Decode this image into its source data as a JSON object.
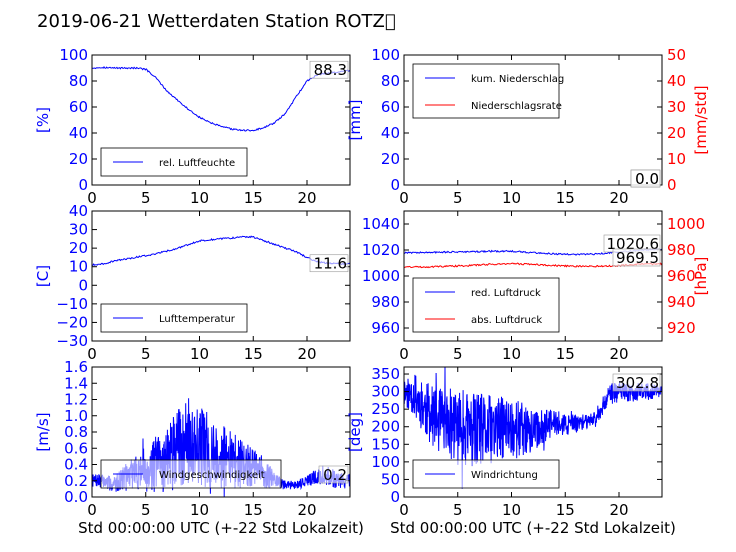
{
  "title": "2019-06-21 Wetterdaten Station ROTZ\u0000",
  "chart_data": [
    {
      "id": "feuchte",
      "type": "line",
      "ylabel": "[%]",
      "ylim": [
        0,
        100
      ],
      "yticks": [
        "0",
        "20",
        "40",
        "60",
        "80",
        "100"
      ],
      "xlim": [
        0,
        24
      ],
      "xticks": [
        "0",
        "5",
        "10",
        "15",
        "20"
      ],
      "xlabel": "",
      "legend": {
        "position": "lower-left",
        "entries": [
          "rel. Luftfeuchte"
        ]
      },
      "last_labels": [
        "88.3"
      ],
      "series": [
        {
          "name": "rel. Luftfeuchte",
          "color": "#0000ff",
          "axis": "left",
          "x": [
            0,
            1,
            2,
            3,
            4,
            5,
            6,
            7,
            8,
            9,
            10,
            11,
            12,
            13,
            14,
            15,
            16,
            17,
            18,
            19,
            20,
            21,
            22,
            23,
            24
          ],
          "y": [
            90,
            90.5,
            90,
            90,
            90,
            89,
            82,
            72,
            65,
            58,
            52,
            48,
            45,
            43,
            42,
            42,
            44,
            48,
            55,
            68,
            80,
            85,
            86,
            87,
            88.3
          ]
        }
      ]
    },
    {
      "id": "niederschlag",
      "type": "line",
      "ylabel": "[mm]",
      "ylim": [
        0,
        100
      ],
      "yticks": [
        "0",
        "20",
        "40",
        "60",
        "80",
        "100"
      ],
      "y2label": "[mm/std]",
      "y2lim": [
        0,
        50
      ],
      "y2ticks": [
        "0",
        "10",
        "20",
        "30",
        "40",
        "50"
      ],
      "xlim": [
        0,
        24
      ],
      "xticks": [
        "0",
        "5",
        "10",
        "15",
        "20"
      ],
      "xlabel": "",
      "legend": {
        "position": "upper-left",
        "entries": [
          "kum. Niederschlag",
          "Niederschlagsrate"
        ]
      },
      "last_labels": [
        "0.0",
        "0.0"
      ],
      "series": [
        {
          "name": "kum. Niederschlag",
          "color": "#0000ff",
          "axis": "left",
          "x": [
            0,
            24
          ],
          "y": [
            0,
            0
          ]
        },
        {
          "name": "Niederschlagsrate",
          "color": "#ff0000",
          "axis": "right",
          "x": [
            0,
            24
          ],
          "y": [
            0,
            0
          ]
        }
      ]
    },
    {
      "id": "temperatur",
      "type": "line",
      "ylabel": "[C]",
      "ylim": [
        -30,
        40
      ],
      "yticks": [
        "−30",
        "−20",
        "−10",
        "0",
        "10",
        "20",
        "30",
        "40"
      ],
      "xlim": [
        0,
        24
      ],
      "xticks": [
        "0",
        "5",
        "10",
        "15",
        "20"
      ],
      "xlabel": "",
      "legend": {
        "position": "lower-left",
        "entries": [
          "Lufttemperatur"
        ]
      },
      "last_labels": [
        "11.6"
      ],
      "series": [
        {
          "name": "Lufttemperatur",
          "color": "#0000ff",
          "axis": "left",
          "x": [
            0,
            1,
            2,
            3,
            4,
            5,
            6,
            7,
            8,
            9,
            10,
            11,
            12,
            13,
            14,
            15,
            16,
            17,
            18,
            19,
            20,
            21,
            22,
            23,
            24
          ],
          "y": [
            11,
            11.5,
            13,
            14,
            15,
            16,
            17,
            18.5,
            20,
            22,
            24,
            24.5,
            25,
            25.5,
            26,
            26,
            24,
            22,
            20,
            18,
            15,
            12.5,
            11.8,
            11.6,
            11.6
          ]
        }
      ]
    },
    {
      "id": "luftdruck",
      "type": "line",
      "ylabel": "",
      "ylim": [
        950,
        1050
      ],
      "yticks": [
        "960",
        "980",
        "1000",
        "1020",
        "1040"
      ],
      "y2label": "[hPa]",
      "y2lim": [
        910,
        1010
      ],
      "y2ticks": [
        "920",
        "940",
        "960",
        "980",
        "1000"
      ],
      "xlim": [
        0,
        24
      ],
      "xticks": [
        "0",
        "5",
        "10",
        "15",
        "20"
      ],
      "xlabel": "",
      "legend": {
        "position": "lower-left",
        "entries": [
          "red. Luftdruck",
          "abs. Luftdruck"
        ]
      },
      "last_labels": [
        "1020.6",
        "969.5"
      ],
      "series": [
        {
          "name": "red. Luftdruck",
          "color": "#0000ff",
          "axis": "left",
          "x": [
            0,
            2,
            4,
            6,
            8,
            10,
            12,
            14,
            16,
            18,
            20,
            22,
            24
          ],
          "y": [
            1018,
            1018,
            1018.5,
            1018.5,
            1019,
            1019,
            1018,
            1017,
            1016.5,
            1017,
            1018.5,
            1020,
            1020.6
          ]
        },
        {
          "name": "abs. Luftdruck",
          "color": "#ff0000",
          "axis": "right",
          "x": [
            0,
            2,
            4,
            6,
            8,
            10,
            12,
            14,
            16,
            18,
            20,
            22,
            24
          ],
          "y": [
            967,
            967,
            967.5,
            968,
            969,
            969.5,
            969,
            968,
            967.5,
            967.5,
            968,
            969,
            969.5
          ]
        }
      ]
    },
    {
      "id": "windgeschw",
      "type": "line",
      "ylabel": "[m/s]",
      "ylim": [
        0,
        1.6
      ],
      "yticks": [
        "0.0",
        "0.2",
        "0.4",
        "0.6",
        "0.8",
        "1.0",
        "1.2",
        "1.4",
        "1.6"
      ],
      "xlim": [
        0,
        24
      ],
      "xticks": [
        "0",
        "5",
        "10",
        "15",
        "20"
      ],
      "xlabel": "Std 00:00:00 UTC (+-22 Std Lokalzeit)",
      "legend": {
        "position": "lower-left",
        "entries": [
          "Windgeschwindigkeit"
        ]
      },
      "last_labels": [
        "0.2"
      ],
      "noise": {
        "seed": 7,
        "amplitude_scale": 1.0
      },
      "series": [
        {
          "name": "Windgeschwindigkeit",
          "color": "#0000ff",
          "axis": "left",
          "x": [
            0,
            1,
            2,
            3,
            4,
            5,
            6,
            7,
            8,
            9,
            10,
            11,
            12,
            13,
            14,
            15,
            16,
            17,
            18,
            19,
            20,
            21,
            22,
            23,
            24
          ],
          "y": [
            0.2,
            0.2,
            0.15,
            0.25,
            0.3,
            0.35,
            0.4,
            0.45,
            0.6,
            0.7,
            0.65,
            0.55,
            0.5,
            0.45,
            0.4,
            0.35,
            0.3,
            0.2,
            0.15,
            0.15,
            0.2,
            0.25,
            0.25,
            0.2,
            0.2
          ],
          "amp": [
            0.08,
            0.08,
            0.1,
            0.15,
            0.2,
            0.3,
            0.35,
            0.4,
            0.5,
            0.55,
            0.5,
            0.45,
            0.4,
            0.35,
            0.3,
            0.25,
            0.2,
            0.1,
            0.05,
            0.05,
            0.08,
            0.1,
            0.12,
            0.1,
            0.1
          ]
        }
      ]
    },
    {
      "id": "windrichtung",
      "type": "line",
      "ylabel": "[deg]",
      "ylim": [
        0,
        370
      ],
      "yticks": [
        "0",
        "50",
        "100",
        "150",
        "200",
        "250",
        "300",
        "350"
      ],
      "xlim": [
        0,
        24
      ],
      "xticks": [
        "0",
        "5",
        "10",
        "15",
        "20"
      ],
      "xlabel": "Std 00:00:00 UTC (+-22 Std Lokalzeit)",
      "legend": {
        "position": "lower-left",
        "entries": [
          "Windrichtung"
        ]
      },
      "last_labels": [
        "302.8"
      ],
      "noise": {
        "seed": 11,
        "amplitude_scale": 1.0
      },
      "series": [
        {
          "name": "Windrichtung",
          "color": "#0000ff",
          "axis": "left",
          "x": [
            0,
            1,
            2,
            3,
            4,
            5,
            6,
            7,
            8,
            9,
            10,
            11,
            12,
            13,
            14,
            15,
            16,
            17,
            18,
            19,
            20,
            21,
            22,
            23,
            24
          ],
          "y": [
            300,
            290,
            250,
            220,
            210,
            200,
            190,
            185,
            190,
            195,
            200,
            190,
            185,
            200,
            210,
            205,
            210,
            215,
            230,
            290,
            300,
            295,
            300,
            300,
            302.8
          ],
          "amp": [
            40,
            60,
            80,
            90,
            100,
            110,
            110,
            110,
            100,
            90,
            90,
            80,
            60,
            50,
            40,
            30,
            25,
            20,
            20,
            30,
            30,
            25,
            25,
            25,
            20
          ]
        }
      ]
    }
  ]
}
